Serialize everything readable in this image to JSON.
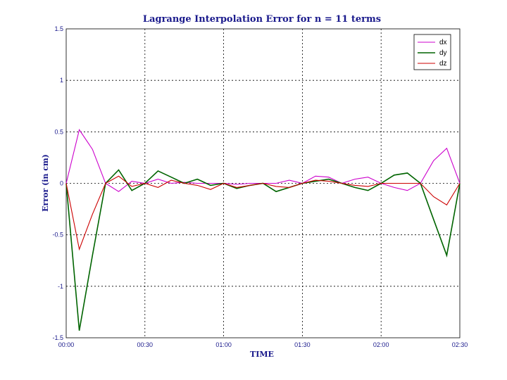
{
  "chart_data": {
    "type": "line",
    "title": "Lagrange Interpolation Error for n = 11 terms",
    "xlabel": "TIME",
    "ylabel": "Error (in cm)",
    "ylim": [
      -1.5,
      1.5
    ],
    "xlim": [
      0,
      150
    ],
    "yticks": [
      1.5,
      1,
      0.5,
      0,
      -0.5,
      -1,
      -1.5
    ],
    "ytick_labels": [
      "1.5",
      "1",
      "0.5",
      "0",
      "-0.5",
      "-1",
      "-1.5"
    ],
    "xticks": [
      0,
      30,
      60,
      90,
      120,
      150
    ],
    "xtick_labels": [
      "00:00",
      "00:30",
      "01:00",
      "01:30",
      "02:00",
      "02:30"
    ],
    "grid": true,
    "legend_position": "top-right",
    "x": [
      0,
      5,
      10,
      15,
      20,
      25,
      30,
      35,
      40,
      45,
      50,
      55,
      60,
      65,
      70,
      75,
      80,
      85,
      90,
      95,
      100,
      105,
      110,
      115,
      120,
      125,
      130,
      135,
      140,
      145,
      150
    ],
    "series": [
      {
        "name": "dx",
        "color": "#cc00cc",
        "values": [
          0.0,
          0.52,
          0.33,
          0.0,
          -0.08,
          0.02,
          0.0,
          0.04,
          0.0,
          0.01,
          0.0,
          0.0,
          0.0,
          -0.01,
          0.0,
          0.0,
          0.0,
          0.03,
          0.0,
          0.07,
          0.06,
          0.0,
          0.04,
          0.06,
          0.0,
          -0.04,
          -0.07,
          0.0,
          0.22,
          0.34,
          0.0
        ]
      },
      {
        "name": "dy",
        "color": "#006400",
        "values": [
          0.0,
          -1.43,
          -0.7,
          0.0,
          0.13,
          -0.07,
          0.0,
          0.12,
          0.06,
          0.0,
          0.04,
          -0.02,
          0.0,
          -0.05,
          -0.02,
          0.0,
          -0.08,
          -0.04,
          0.0,
          0.02,
          0.04,
          0.0,
          -0.04,
          -0.07,
          0.0,
          0.08,
          0.1,
          0.0,
          -0.35,
          -0.7,
          0.0
        ]
      },
      {
        "name": "dz",
        "color": "#cc0000",
        "values": [
          0.0,
          -0.64,
          -0.3,
          0.0,
          0.07,
          -0.03,
          0.0,
          -0.04,
          0.03,
          0.0,
          -0.02,
          -0.06,
          0.0,
          -0.04,
          -0.02,
          0.0,
          -0.03,
          -0.04,
          0.0,
          0.03,
          0.02,
          0.0,
          -0.02,
          -0.03,
          0.0,
          0.0,
          0.0,
          0.0,
          -0.13,
          -0.21,
          0.0
        ]
      }
    ]
  }
}
